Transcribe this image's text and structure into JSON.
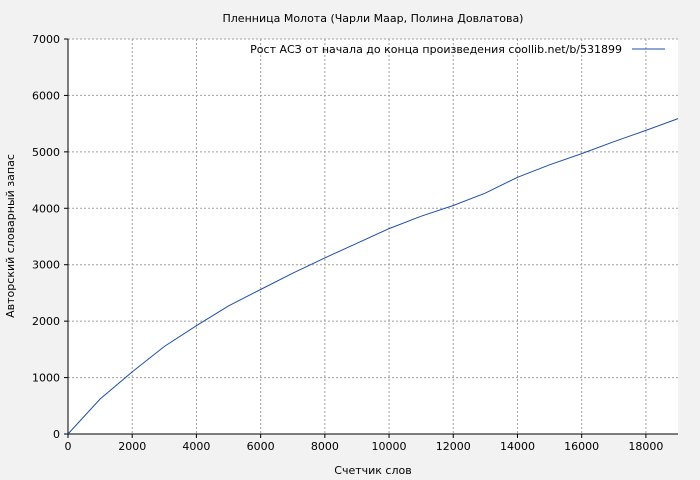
{
  "chart_data": {
    "type": "line",
    "title": "Пленница Молота (Чарли Маар, Полина Довлатова)",
    "xlabel": "Счетчик слов",
    "ylabel": "Авторский словарный запас",
    "xlim": [
      0,
      19000
    ],
    "ylim": [
      0,
      7000
    ],
    "x_ticks": [
      0,
      2000,
      4000,
      6000,
      8000,
      10000,
      12000,
      14000,
      16000,
      18000
    ],
    "y_ticks": [
      0,
      1000,
      2000,
      3000,
      4000,
      5000,
      6000,
      7000
    ],
    "grid": true,
    "legend_position": "top-right",
    "series": [
      {
        "name": "Рост АСЗ от начала до конца произведения coollib.net/b/531899",
        "color": "#1f4fa8",
        "x": [
          0,
          1000,
          2000,
          3000,
          4000,
          5000,
          6000,
          7000,
          8000,
          9000,
          10000,
          11000,
          12000,
          13000,
          14000,
          15000,
          16000,
          17000,
          18000,
          19000
        ],
        "y": [
          0,
          620,
          1100,
          1550,
          1920,
          2270,
          2560,
          2850,
          3120,
          3380,
          3640,
          3860,
          4050,
          4270,
          4550,
          4770,
          4970,
          5180,
          5380,
          5590
        ]
      }
    ]
  },
  "colors": {
    "background": "#f2f2f2",
    "plot_area": "#ffffff",
    "grid": "#a0a0a0",
    "axis": "#000000"
  }
}
